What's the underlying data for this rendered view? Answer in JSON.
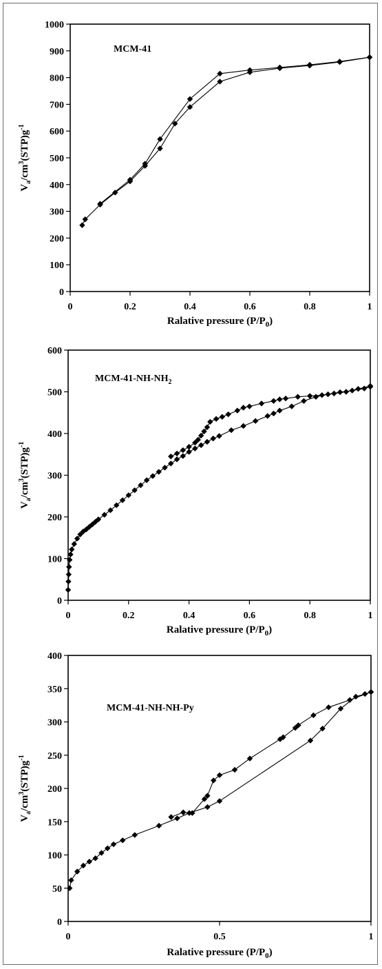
{
  "colors": {
    "series": "#000000",
    "axis": "#000000",
    "frame": "#6b6b6b"
  },
  "chart_data": [
    {
      "type": "line",
      "title": "MCM-41",
      "xlabel": "Ralative pressure (P/P0)",
      "xlabel_main": "Ralative pressure (P/P",
      "xlabel_sub": "0",
      "xlabel_end": ")",
      "ylabel": "Va/cm3(STP)g-1",
      "ylabel_parts": [
        "V",
        "a",
        "/cm",
        "3",
        "(STP)g",
        "-1"
      ],
      "xlim": [
        0,
        1
      ],
      "ylim": [
        0,
        1000
      ],
      "xticks": [
        0,
        0.2,
        0.4,
        0.6,
        0.8,
        1
      ],
      "xtick_labels": [
        "0",
        "0.2",
        "0.4",
        "0.6",
        "0.8",
        "1"
      ],
      "yticks": [
        0,
        100,
        200,
        300,
        400,
        500,
        600,
        700,
        800,
        900,
        1000
      ],
      "ytick_labels": [
        "0",
        "100",
        "200",
        "300",
        "400",
        "500",
        "600",
        "700",
        "800",
        "900",
        "1000"
      ],
      "series": [
        {
          "x": [
            0.04,
            0.05,
            0.1,
            0.15,
            0.2,
            0.25,
            0.3,
            0.35,
            0.4,
            0.5,
            0.6,
            0.7,
            0.8,
            0.9,
            1.0
          ],
          "y": [
            248,
            270,
            325,
            370,
            412,
            470,
            535,
            628,
            690,
            785,
            820,
            835,
            845,
            858,
            876
          ]
        },
        {
          "x": [
            1.0,
            0.9,
            0.8,
            0.7,
            0.6,
            0.5,
            0.4,
            0.3,
            0.25,
            0.2,
            0.1
          ],
          "y": [
            876,
            860,
            848,
            838,
            828,
            815,
            720,
            570,
            478,
            418,
            328
          ]
        }
      ]
    },
    {
      "type": "line",
      "title": "MCM-41-NH-NH2",
      "title_main": "MCM-41-NH-NH",
      "title_sub": "2",
      "xlabel": "Ralative pressure (P/P0)",
      "xlabel_main": "Ralative pressure (P/P",
      "xlabel_sub": "0",
      "xlabel_end": ")",
      "ylabel": "Va/cm3(STP)g-1",
      "ylabel_parts": [
        "V",
        "a",
        "/cm",
        "3",
        "(STP)g",
        "-1"
      ],
      "xlim": [
        0,
        1
      ],
      "ylim": [
        0,
        600
      ],
      "xticks": [
        0,
        0.2,
        0.4,
        0.6,
        0.8,
        1
      ],
      "xtick_labels": [
        "0",
        "0.2",
        "0.4",
        "0.6",
        "0.8",
        "1"
      ],
      "yticks": [
        0,
        100,
        200,
        300,
        400,
        500,
        600
      ],
      "ytick_labels": [
        "0",
        "100",
        "200",
        "300",
        "400",
        "500",
        "600"
      ],
      "series": [
        {
          "x": [
            0.0,
            0.001,
            0.002,
            0.003,
            0.005,
            0.008,
            0.012,
            0.02,
            0.03,
            0.04,
            0.05,
            0.06,
            0.07,
            0.08,
            0.09,
            0.1,
            0.12,
            0.14,
            0.16,
            0.18,
            0.2,
            0.22,
            0.24,
            0.26,
            0.28,
            0.3,
            0.32,
            0.34,
            0.36,
            0.38,
            0.4,
            0.42,
            0.44,
            0.46,
            0.48,
            0.5,
            0.54,
            0.58,
            0.62,
            0.66,
            0.68,
            0.7,
            0.74,
            0.78,
            0.82,
            0.86,
            0.9,
            0.94,
            0.98,
            1.0
          ],
          "y": [
            25,
            45,
            62,
            80,
            97,
            110,
            122,
            135,
            148,
            158,
            165,
            170,
            176,
            182,
            188,
            194,
            205,
            216,
            228,
            240,
            252,
            264,
            276,
            288,
            298,
            308,
            318,
            328,
            338,
            346,
            356,
            364,
            372,
            380,
            388,
            394,
            408,
            418,
            430,
            442,
            448,
            455,
            465,
            478,
            488,
            494,
            499,
            503,
            508,
            512
          ]
        },
        {
          "x": [
            1.0,
            0.96,
            0.92,
            0.88,
            0.84,
            0.8,
            0.76,
            0.72,
            0.7,
            0.68,
            0.64,
            0.6,
            0.58,
            0.56,
            0.53,
            0.51,
            0.49,
            0.47,
            0.46,
            0.45,
            0.44,
            0.43,
            0.42,
            0.4,
            0.38,
            0.36,
            0.34
          ],
          "y": [
            514,
            507,
            500,
            496,
            492,
            490,
            488,
            484,
            482,
            478,
            472,
            465,
            462,
            455,
            446,
            440,
            435,
            428,
            415,
            405,
            395,
            385,
            378,
            368,
            360,
            352,
            345
          ]
        }
      ]
    },
    {
      "type": "line",
      "title": "MCM-41-NH-NH-Py",
      "xlabel": "Ralative pressure (P/P0)",
      "xlabel_main": "Ralative pressure (P/P",
      "xlabel_sub": "0",
      "xlabel_end": ")",
      "ylabel": "Va/cm3(STP)g-1",
      "ylabel_parts": [
        "V",
        "a",
        "/cm",
        "3",
        "(STP)g",
        "-1"
      ],
      "xlim": [
        0,
        1
      ],
      "ylim": [
        0,
        400
      ],
      "xticks": [
        0,
        0.5,
        1
      ],
      "xtick_labels": [
        "0",
        "0.5",
        "1"
      ],
      "yticks": [
        0,
        50,
        100,
        150,
        200,
        250,
        300,
        350,
        400
      ],
      "ytick_labels": [
        "0",
        "50",
        "100",
        "150",
        "200",
        "250",
        "300",
        "350",
        "400"
      ],
      "series": [
        {
          "x": [
            0.005,
            0.01,
            0.03,
            0.05,
            0.07,
            0.09,
            0.11,
            0.13,
            0.15,
            0.18,
            0.22,
            0.3,
            0.36,
            0.4,
            0.46,
            0.5,
            0.8,
            0.84,
            0.9,
            0.95,
            0.98,
            1.0
          ],
          "y": [
            50,
            62,
            75,
            84,
            90,
            95,
            103,
            110,
            116,
            122,
            130,
            144,
            155,
            163,
            172,
            181,
            272,
            290,
            320,
            338,
            342,
            345
          ]
        },
        {
          "x": [
            1.0,
            0.93,
            0.86,
            0.81,
            0.76,
            0.75,
            0.71,
            0.7,
            0.6,
            0.55,
            0.5,
            0.48,
            0.46,
            0.45,
            0.41,
            0.38,
            0.34
          ],
          "y": [
            345,
            333,
            322,
            310,
            295,
            291,
            277,
            274,
            245,
            228,
            220,
            212,
            189,
            184,
            163,
            164,
            157
          ]
        }
      ]
    }
  ]
}
